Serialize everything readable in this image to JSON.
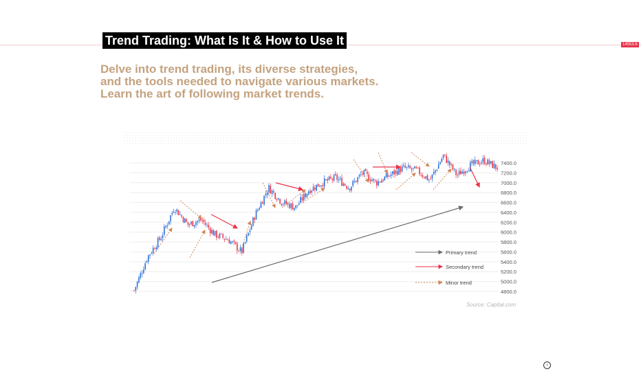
{
  "header": {
    "title": "Trend Trading: What Is It & How to Use It",
    "price_tag": "14553.6"
  },
  "intro": {
    "lines": [
      "Delve into trend trading, its diverse strategies,",
      "and the tools needed to navigate various markets.",
      "Learn the art of following market trends."
    ]
  },
  "colors": {
    "accent": "#e8334a",
    "subtitle": "#c4a27f",
    "candle_up": "#2e6fd8",
    "candle_down": "#e8334a",
    "primary_trend": "#6b6b6b",
    "secondary_trend": "#e8334a",
    "minor_trend": "#d0875a"
  },
  "chart_data": {
    "type": "line",
    "subtype": "candlestick",
    "title": "",
    "xlabel": "",
    "ylabel": "",
    "ylim": [
      4700,
      7700
    ],
    "y_ticks": [
      "4800.0",
      "5000.0",
      "5200.0",
      "5400.0",
      "5600.0",
      "5800.0",
      "6000.0",
      "6200.0",
      "6400.0",
      "6600.0",
      "6800.0",
      "7000.0",
      "7200.0",
      "7400.0"
    ],
    "grid": true,
    "legend_position": "bottom-right",
    "source": "Source: Capital.com",
    "legend": [
      {
        "label": "Primary trend",
        "style": "solid-gray-arrow"
      },
      {
        "label": "Secondary trend",
        "style": "solid-red-arrow"
      },
      {
        "label": "Minor trend",
        "style": "dotted-orange-arrow"
      }
    ],
    "price_path": [
      4820,
      5500,
      5900,
      6500,
      6150,
      6250,
      5950,
      5850,
      5600,
      6350,
      6900,
      6600,
      6500,
      6850,
      7000,
      7100,
      6900,
      7200,
      7000,
      7150,
      7300,
      7250,
      7050,
      7550,
      7150,
      7350,
      7450,
      7300
    ]
  }
}
